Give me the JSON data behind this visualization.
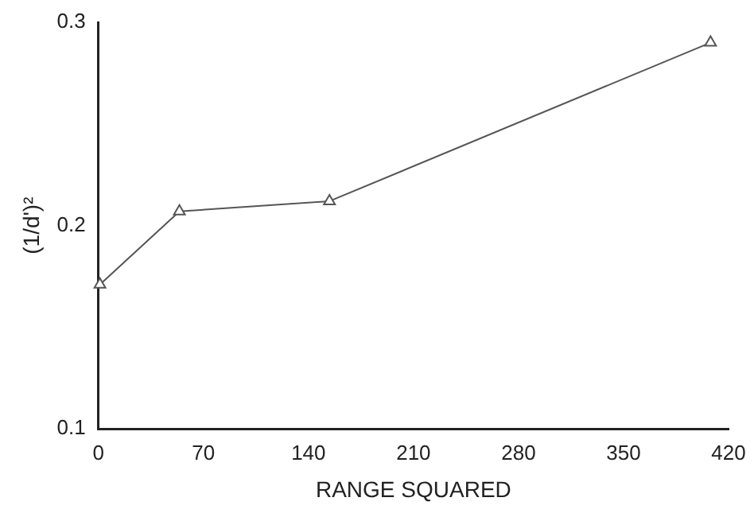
{
  "chart_data": {
    "type": "line",
    "xlabel": "RANGE SQUARED",
    "ylabel": "(1/d')²",
    "x": [
      1,
      54,
      154,
      408
    ],
    "series": [
      {
        "color": "#555555",
        "values": [
          0.171,
          0.207,
          0.212,
          0.29
        ]
      }
    ],
    "xlim": [
      0,
      420
    ],
    "xticks": [
      0,
      70,
      140,
      210,
      280,
      350,
      420
    ],
    "ylim": [
      0.1,
      0.3
    ],
    "yticks": [
      0.1,
      0.2,
      0.3
    ],
    "grid": false,
    "legend": false,
    "marker": "triangle",
    "line_style": "solid"
  }
}
